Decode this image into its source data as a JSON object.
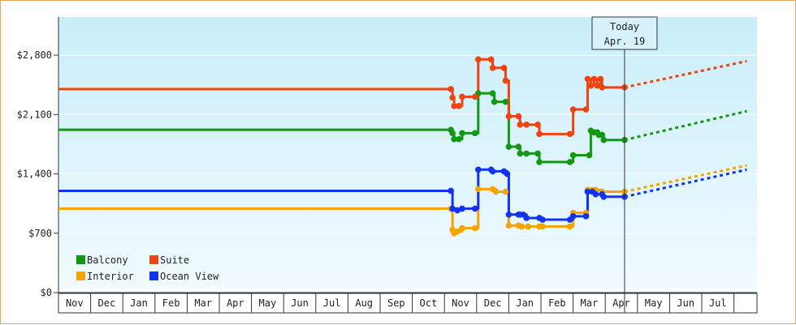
{
  "chart_data": {
    "type": "line",
    "title": "",
    "xlabel": "",
    "ylabel": "",
    "y_ticks": [
      "$0",
      "$700",
      "$1,400",
      "$2,100",
      "$2,800"
    ],
    "y_tick_values": [
      0,
      700,
      1400,
      2100,
      2800
    ],
    "ylim": [
      0,
      3250
    ],
    "x_months": [
      "Nov",
      "Dec",
      "Jan",
      "Feb",
      "Mar",
      "Apr",
      "May",
      "Jun",
      "Jul",
      "Aug",
      "Sep",
      "Oct",
      "Nov",
      "Dec",
      "Jan",
      "Feb",
      "Mar",
      "Apr",
      "May",
      "Jun",
      "Jul"
    ],
    "x_unit": "month index from first Nov",
    "today": {
      "line1": "Today",
      "line2": "Apr. 19",
      "x": 17.6
    },
    "grid": true,
    "legend_position": "bottom-left",
    "legend": [
      {
        "name": "Balcony",
        "color": "#119911"
      },
      {
        "name": "Suite",
        "color": "#ee4411"
      },
      {
        "name": "Interior",
        "color": "#f5a300"
      },
      {
        "name": "Ocean View",
        "color": "#1133ee"
      }
    ],
    "series": [
      {
        "name": "Balcony",
        "color": "#119911",
        "points": [
          [
            0,
            1920
          ],
          [
            12.2,
            1920
          ],
          [
            12.25,
            1880
          ],
          [
            12.3,
            1810
          ],
          [
            12.45,
            1810
          ],
          [
            12.55,
            1880
          ],
          [
            12.95,
            1880
          ],
          [
            13.05,
            2350
          ],
          [
            13.5,
            2350
          ],
          [
            13.55,
            2250
          ],
          [
            13.9,
            2250
          ],
          [
            14.0,
            1720
          ],
          [
            14.3,
            1720
          ],
          [
            14.35,
            1640
          ],
          [
            14.55,
            1640
          ],
          [
            14.9,
            1640
          ],
          [
            14.95,
            1540
          ],
          [
            15.9,
            1540
          ],
          [
            16.0,
            1620
          ],
          [
            16.5,
            1620
          ],
          [
            16.55,
            1910
          ],
          [
            16.65,
            1890
          ],
          [
            16.75,
            1890
          ],
          [
            16.8,
            1860
          ],
          [
            16.9,
            1860
          ],
          [
            16.95,
            1800
          ],
          [
            17.6,
            1800
          ]
        ]
      },
      {
        "name": "Suite",
        "color": "#ee4411",
        "points": [
          [
            0,
            2400
          ],
          [
            12.2,
            2400
          ],
          [
            12.25,
            2300
          ],
          [
            12.3,
            2200
          ],
          [
            12.45,
            2200
          ],
          [
            12.55,
            2310
          ],
          [
            12.95,
            2310
          ],
          [
            13.05,
            2750
          ],
          [
            13.45,
            2750
          ],
          [
            13.5,
            2650
          ],
          [
            13.85,
            2650
          ],
          [
            13.9,
            2500
          ],
          [
            14.0,
            2080
          ],
          [
            14.3,
            2080
          ],
          [
            14.35,
            1980
          ],
          [
            14.55,
            1980
          ],
          [
            14.9,
            1980
          ],
          [
            14.95,
            1870
          ],
          [
            15.9,
            1870
          ],
          [
            16.0,
            2160
          ],
          [
            16.4,
            2160
          ],
          [
            16.45,
            2520
          ],
          [
            16.55,
            2440
          ],
          [
            16.65,
            2520
          ],
          [
            16.75,
            2440
          ],
          [
            16.85,
            2520
          ],
          [
            16.9,
            2420
          ],
          [
            17.6,
            2420
          ]
        ]
      },
      {
        "name": "Interior",
        "color": "#f5a300",
        "points": [
          [
            0,
            990
          ],
          [
            12.2,
            990
          ],
          [
            12.25,
            740
          ],
          [
            12.3,
            700
          ],
          [
            12.4,
            720
          ],
          [
            12.55,
            760
          ],
          [
            12.95,
            760
          ],
          [
            13.05,
            1220
          ],
          [
            13.5,
            1220
          ],
          [
            13.6,
            1190
          ],
          [
            13.9,
            1190
          ],
          [
            14.0,
            790
          ],
          [
            14.3,
            790
          ],
          [
            14.4,
            780
          ],
          [
            14.6,
            780
          ],
          [
            14.95,
            780
          ],
          [
            15.05,
            780
          ],
          [
            15.9,
            780
          ],
          [
            16.0,
            940
          ],
          [
            16.4,
            940
          ],
          [
            16.45,
            1210
          ],
          [
            16.6,
            1210
          ],
          [
            16.7,
            1210
          ],
          [
            16.9,
            1190
          ],
          [
            17.6,
            1190
          ]
        ]
      },
      {
        "name": "Ocean View",
        "color": "#1133ee",
        "points": [
          [
            0,
            1200
          ],
          [
            12.2,
            1200
          ],
          [
            12.25,
            990
          ],
          [
            12.4,
            970
          ],
          [
            12.55,
            990
          ],
          [
            12.95,
            990
          ],
          [
            13.05,
            1450
          ],
          [
            13.45,
            1450
          ],
          [
            13.5,
            1430
          ],
          [
            13.85,
            1430
          ],
          [
            13.95,
            1400
          ],
          [
            14.0,
            920
          ],
          [
            14.3,
            920
          ],
          [
            14.35,
            920
          ],
          [
            14.45,
            920
          ],
          [
            14.55,
            880
          ],
          [
            14.95,
            880
          ],
          [
            15.05,
            860
          ],
          [
            15.9,
            860
          ],
          [
            16.0,
            900
          ],
          [
            16.4,
            900
          ],
          [
            16.45,
            1190
          ],
          [
            16.6,
            1190
          ],
          [
            16.7,
            1160
          ],
          [
            16.9,
            1160
          ],
          [
            16.95,
            1130
          ],
          [
            17.6,
            1130
          ]
        ]
      }
    ],
    "projections": [
      {
        "name": "Suite",
        "from": [
          17.6,
          2420
        ],
        "to": [
          21.4,
          2730
        ]
      },
      {
        "name": "Balcony",
        "from": [
          17.6,
          1800
        ],
        "to": [
          21.4,
          2140
        ]
      },
      {
        "name": "Interior",
        "from": [
          17.6,
          1190
        ],
        "to": [
          21.4,
          1500
        ]
      },
      {
        "name": "Ocean View",
        "from": [
          17.6,
          1130
        ],
        "to": [
          21.4,
          1450
        ]
      }
    ]
  }
}
